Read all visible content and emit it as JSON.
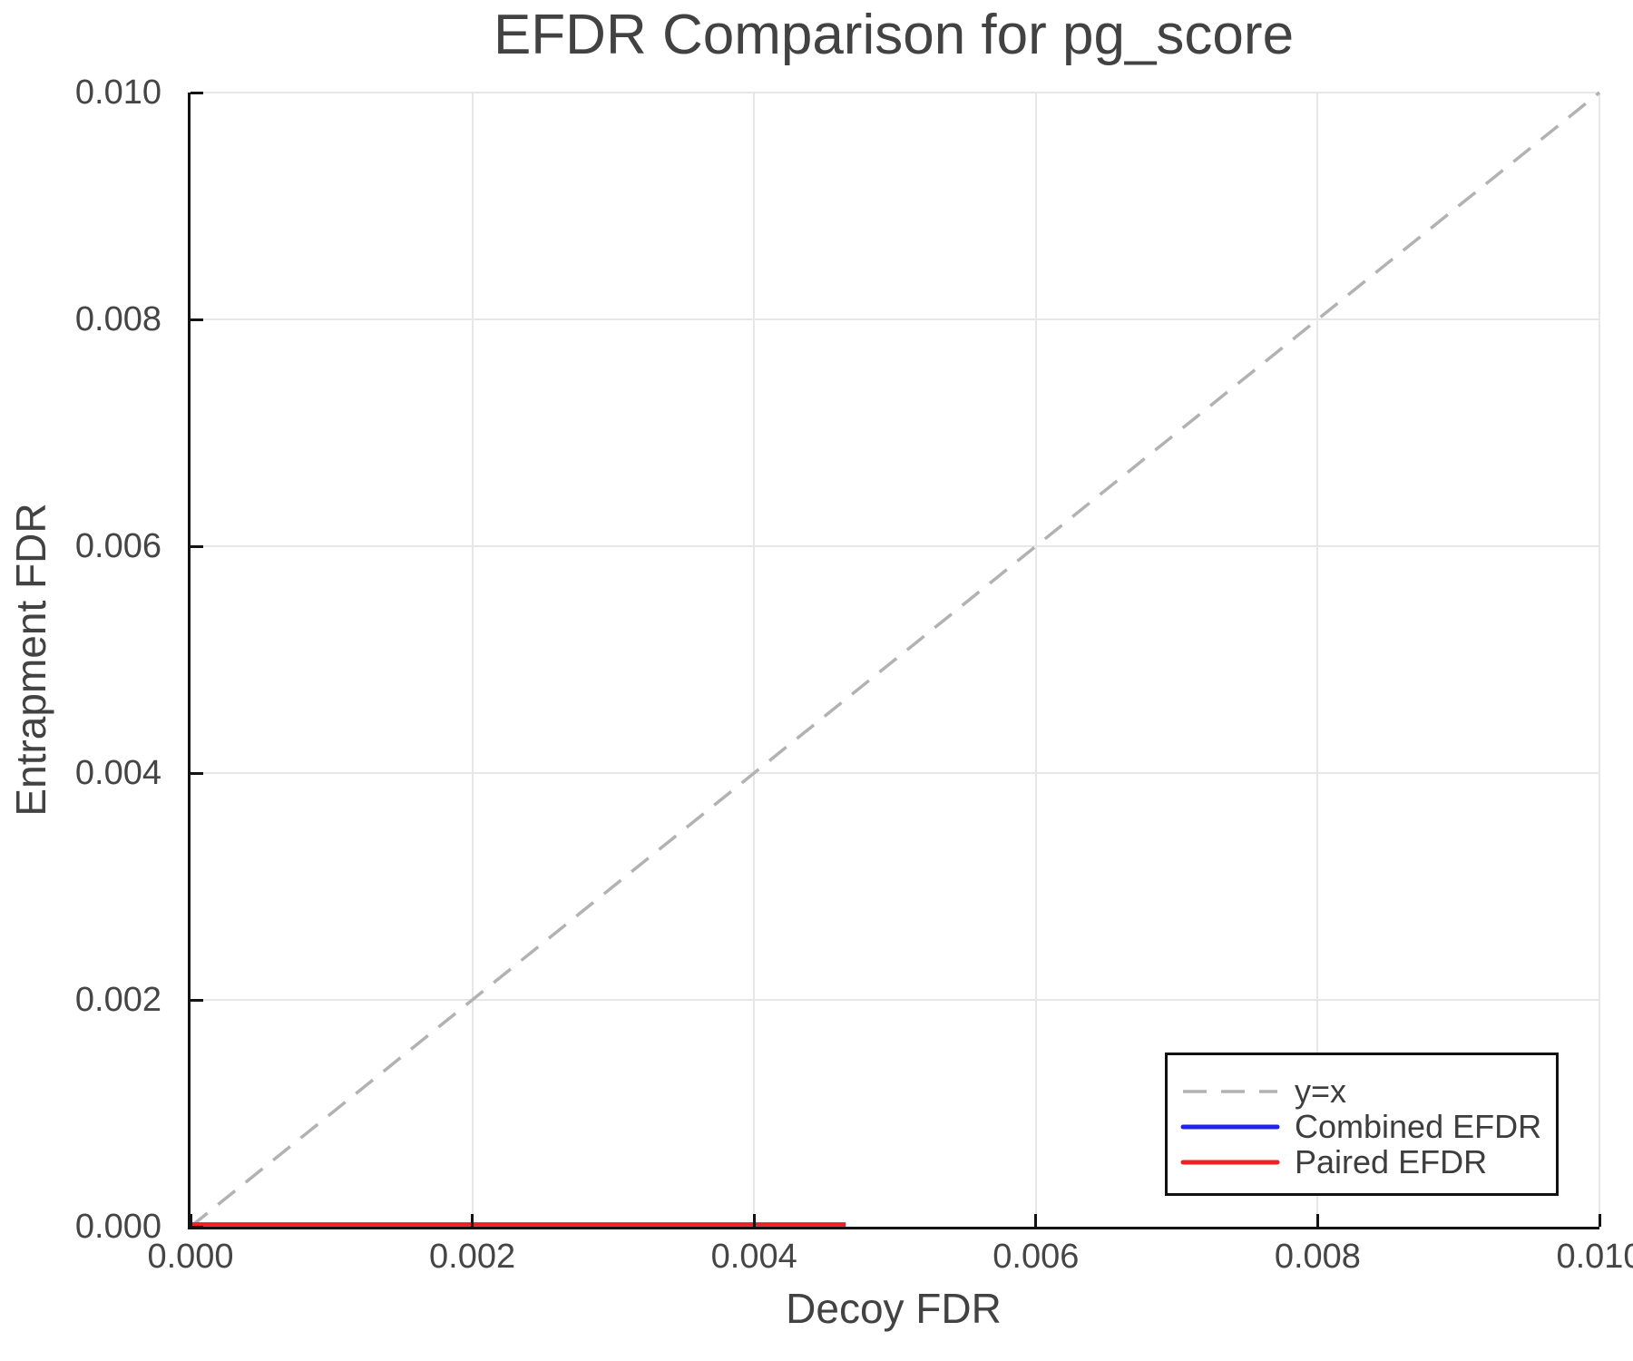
{
  "page": {
    "background": "#ffffff"
  },
  "chart_data": {
    "type": "line",
    "title": "EFDR Comparison for pg_score",
    "xlabel": "Decoy FDR",
    "ylabel": "Entrapment FDR",
    "xlim": [
      0.0,
      0.01
    ],
    "ylim": [
      0.0,
      0.01
    ],
    "grid": true,
    "grid_color": "#e7e7e7",
    "axis_color": "#131313",
    "text_color": "#424242",
    "tick_direction": "in",
    "x_ticks": {
      "values": [
        0.0,
        0.002,
        0.004,
        0.006,
        0.008,
        0.01
      ],
      "labels": [
        "0.000",
        "0.002",
        "0.004",
        "0.006",
        "0.008",
        "0.010"
      ]
    },
    "y_ticks": {
      "values": [
        0.0,
        0.002,
        0.004,
        0.006,
        0.008,
        0.01
      ],
      "labels": [
        "0.000",
        "0.002",
        "0.004",
        "0.006",
        "0.008",
        "0.010"
      ]
    },
    "legend": {
      "position": "lower-right",
      "border_color": "#111111",
      "background": "#ffffff"
    },
    "series": [
      {
        "name": "y=x",
        "role": "reference-line",
        "style": "dashed",
        "color": "#b2b2b2",
        "x": [
          0.0,
          0.01
        ],
        "y": [
          0.0,
          0.01
        ]
      },
      {
        "name": "Combined EFDR",
        "role": "data-line",
        "style": "solid",
        "color": "#2222ee",
        "x": [
          0.0,
          0.00465
        ],
        "y": [
          0.0,
          0.0
        ]
      },
      {
        "name": "Paired EFDR",
        "role": "data-line",
        "style": "solid",
        "color": "#ee2222",
        "x": [
          0.0,
          0.00465
        ],
        "y": [
          0.0,
          0.0
        ]
      }
    ]
  }
}
